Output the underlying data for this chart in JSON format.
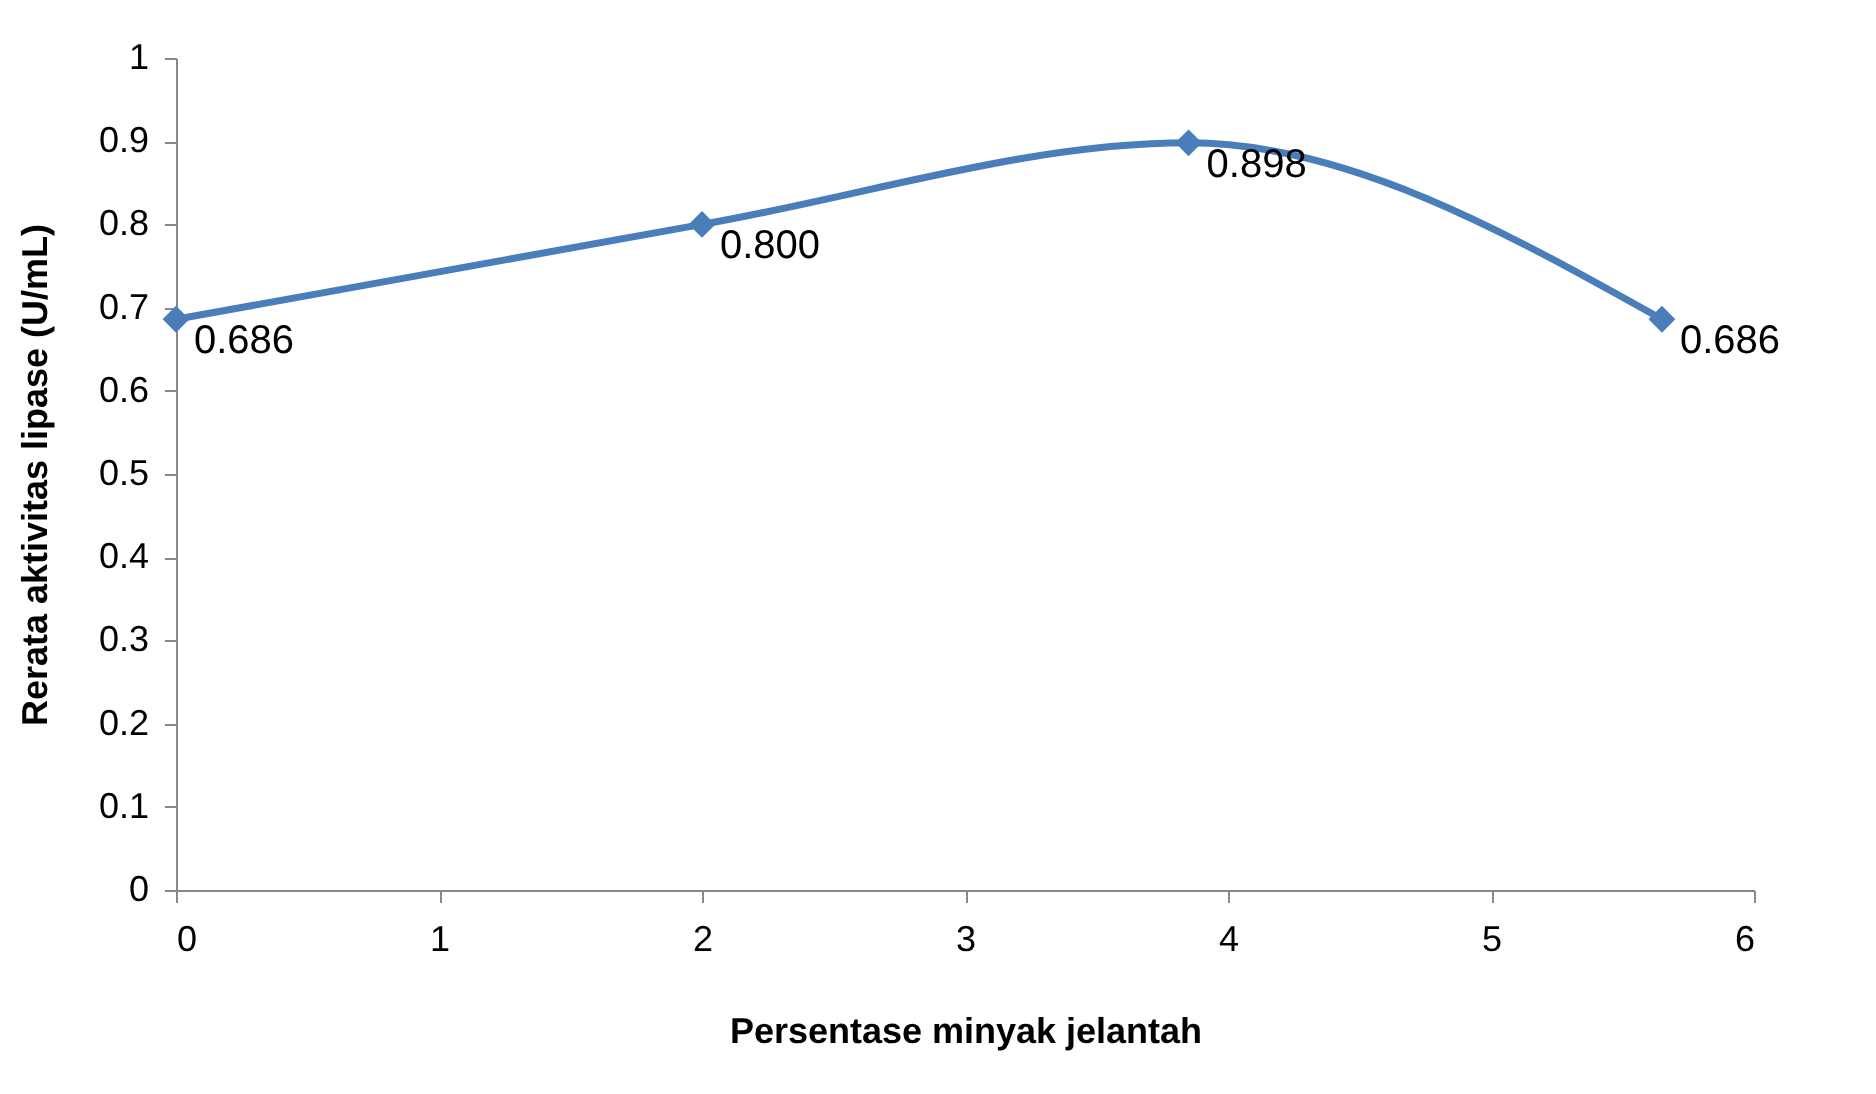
{
  "chart_data": {
    "type": "line",
    "xlabel": "Persentase minyak jelantah",
    "ylabel": "Rerata aktivitas lipase (U/mL)",
    "x": [
      0,
      2,
      3.85,
      5.65
    ],
    "series": [
      {
        "color": "#4a7ebb",
        "values": [
          0.686,
          0.8,
          0.898,
          0.686
        ],
        "value_labels": [
          "0.686",
          "0.800",
          "0.898",
          "0.686"
        ]
      }
    ],
    "xlim": [
      0,
      6
    ],
    "xticks": [
      0,
      1,
      2,
      3,
      4,
      5,
      6
    ],
    "ylim": [
      0,
      1
    ],
    "yticks": [
      0,
      0.1,
      0.2,
      0.3,
      0.4,
      0.5,
      0.6,
      0.7,
      0.8,
      0.9,
      1
    ],
    "grid": false,
    "marker": "diamond",
    "line_style": "solid"
  }
}
